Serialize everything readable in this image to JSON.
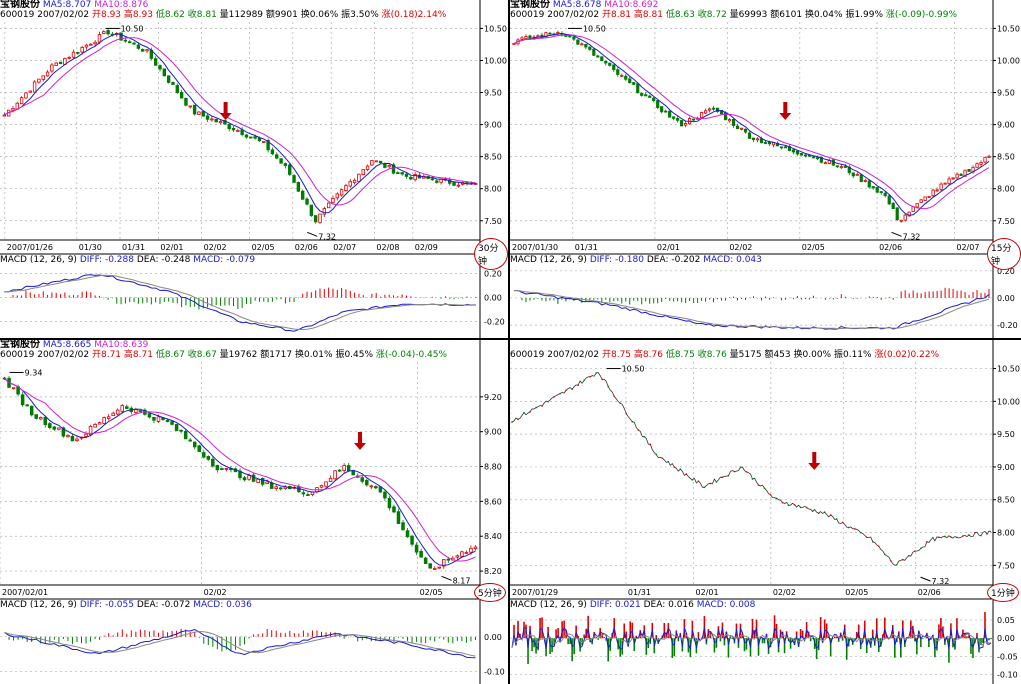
{
  "colors": {
    "up": "#e00000",
    "down": "#007a00",
    "ma5": "#1a1ad0",
    "ma10": "#d020d0",
    "macd_up": "#e00000",
    "macd_down": "#008000",
    "signal_arrow": "#c00000",
    "grid": "#b0b0b0"
  },
  "panels": [
    {
      "id": "p30",
      "name": "宝钢股份",
      "ma5": "MA5:8.707",
      "ma10": "MA10:8.876",
      "code": "600019",
      "date": "2007/02/02",
      "open": "开8.93",
      "high": "高8.93",
      "low": "低8.62",
      "close": "收8.81",
      "vol": "量112989",
      "amt": "额9901",
      "turn": "换0.06%",
      "amp": "振3.50%",
      "chg": "涨(0.18)2.14%",
      "timeframe": "30分钟",
      "peak_label": "10.50",
      "low_label": "7.32",
      "x_labels": [
        "2007/01/26",
        "01/30",
        "01/31",
        "02/01",
        "02/02",
        "02/05",
        "02/06",
        "02/07",
        "02/08",
        "02/09"
      ],
      "y_ticks": [
        "10.50",
        "10.00",
        "9.50",
        "9.00",
        "8.50",
        "8.00",
        "7.50"
      ],
      "macd_header": {
        "title": "MACD (12, 26, 9)",
        "diff": "DIFF: -0.288",
        "dea": "DEA: -0.248",
        "macd": "MACD: -0.079"
      },
      "macd_ticks": [
        "0.20",
        "0.00",
        "-0.20"
      ]
    },
    {
      "id": "p15",
      "name": "宝钢股份",
      "ma5": "MA5:8.678",
      "ma10": "MA10:8.692",
      "code": "600019",
      "date": "2007/02/02",
      "open": "开8.81",
      "high": "高8.81",
      "low": "低8.63",
      "close": "收8.72",
      "vol": "量69993",
      "amt": "额6101",
      "turn": "换0.04%",
      "amp": "振1.99%",
      "chg": "涨(-0.09)-0.99%",
      "timeframe": "15分钟",
      "peak_label": "10.50",
      "low_label": "7.32",
      "x_labels": [
        "2007/01/30",
        "01/31",
        "02/01",
        "02/02",
        "02/05",
        "02/06",
        "02/07"
      ],
      "y_ticks": [
        "10.50",
        "10.00",
        "9.50",
        "9.00",
        "8.50",
        "8.00",
        "7.50"
      ],
      "macd_header": {
        "title": "MACD (12, 26, 9)",
        "diff": "DIFF: -0.180",
        "dea": "DEA: -0.202",
        "macd": "MACD: 0.043"
      },
      "macd_ticks": [
        "0.20",
        "0.00",
        "-0.20"
      ]
    },
    {
      "id": "p5",
      "name": "宝钢股份",
      "ma5": "MA5:8.665",
      "ma10": "MA10:8.639",
      "code": "600019",
      "date": "2007/02/02",
      "open": "开8.71",
      "high": "高8.71",
      "low": "低8.67",
      "close": "收8.67",
      "vol": "量19762",
      "amt": "额1717",
      "turn": "换0.01%",
      "amp": "振0.45%",
      "chg": "涨(-0.04)-0.45%",
      "timeframe": "5分钟",
      "peak_label": "9.34",
      "low_label": "8.17",
      "x_labels": [
        "2007/02/01",
        "02/02",
        "02/05"
      ],
      "y_ticks": [
        "9.20",
        "9.00",
        "8.80",
        "8.60",
        "8.40",
        "8.20"
      ],
      "macd_header": {
        "title": "MACD (12, 26, 9)",
        "diff": "DIFF: -0.055",
        "dea": "DEA: -0.072",
        "macd": "MACD: 0.036"
      },
      "macd_ticks": [
        "0.00",
        "-0.10"
      ]
    },
    {
      "id": "p1",
      "name": "",
      "ma5": "",
      "ma10": "",
      "code": "600019",
      "date": "2007/02/02",
      "open": "开8.75",
      "high": "高8.76",
      "low": "低8.75",
      "close": "收8.76",
      "vol": "量5175",
      "amt": "额453",
      "turn": "换0.00%",
      "amp": "振0.11%",
      "chg": "涨(0.02)0.22%",
      "timeframe": "1分钟",
      "peak_label": "10.50",
      "low_label": "7.32",
      "x_labels": [
        "2007/01/29",
        "01/31",
        "02/01",
        "02/02",
        "02/05",
        "02/06"
      ],
      "y_ticks": [
        "10.50",
        "10.00",
        "9.50",
        "9.00",
        "8.50",
        "8.00",
        "7.50"
      ],
      "macd_header": {
        "title": "MACD (12, 26, 9)",
        "diff": "DIFF: 0.021",
        "dea": "DEA: 0.016",
        "macd": "MACD: 0.008"
      },
      "macd_ticks": [
        "0.05",
        "0.00",
        "-0.05",
        "-0.10"
      ]
    }
  ],
  "chart_data": [
    {
      "type": "candlestick",
      "title": "宝钢股份 600019 30分钟",
      "ylim": [
        7.2,
        10.6
      ],
      "peak": 10.5,
      "low": 7.32,
      "series": [
        {
          "name": "MA5",
          "value": 8.707
        },
        {
          "name": "MA10",
          "value": 8.876
        }
      ]
    },
    {
      "type": "candlestick",
      "title": "宝钢股份 600019 15分钟",
      "ylim": [
        7.2,
        10.6
      ],
      "peak": 10.5,
      "low": 7.32,
      "series": [
        {
          "name": "MA5",
          "value": 8.678
        },
        {
          "name": "MA10",
          "value": 8.692
        }
      ]
    },
    {
      "type": "candlestick",
      "title": "宝钢股份 600019 5分钟",
      "ylim": [
        8.12,
        9.4
      ],
      "peak": 9.34,
      "low": 8.17,
      "series": [
        {
          "name": "MA5",
          "value": 8.665
        },
        {
          "name": "MA10",
          "value": 8.639
        }
      ]
    },
    {
      "type": "line",
      "title": "600019 1分钟",
      "ylim": [
        7.2,
        10.6
      ],
      "peak": 10.5,
      "low": 7.32
    }
  ]
}
